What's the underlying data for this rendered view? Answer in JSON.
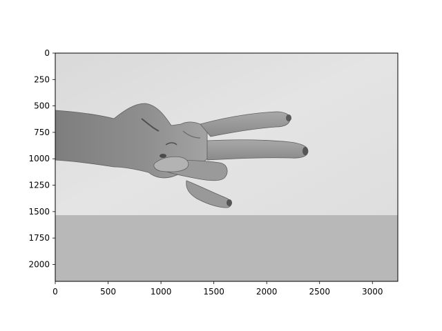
{
  "chart_data": {
    "type": "image",
    "title": "",
    "xlabel": "",
    "ylabel": "",
    "xlim": [
      0,
      3240
    ],
    "ylim": [
      2160,
      0
    ],
    "x_ticks": [
      "0",
      "500",
      "1000",
      "1500",
      "2000",
      "2500",
      "3000"
    ],
    "y_ticks": [
      "0",
      "250",
      "500",
      "750",
      "1000",
      "1250",
      "1500",
      "1750",
      "2000"
    ],
    "grid": false,
    "image_description": "Grayscale photo of a hand with index and middle fingers extended (peace/V sign) held sideways against a light textured wall, above a flat gray band.",
    "colors": {
      "wall": "#dcdcdc",
      "floor_band": "#b8b8b8",
      "skin": "#9a9a9a",
      "skin_dark": "#6e6e6e"
    }
  }
}
